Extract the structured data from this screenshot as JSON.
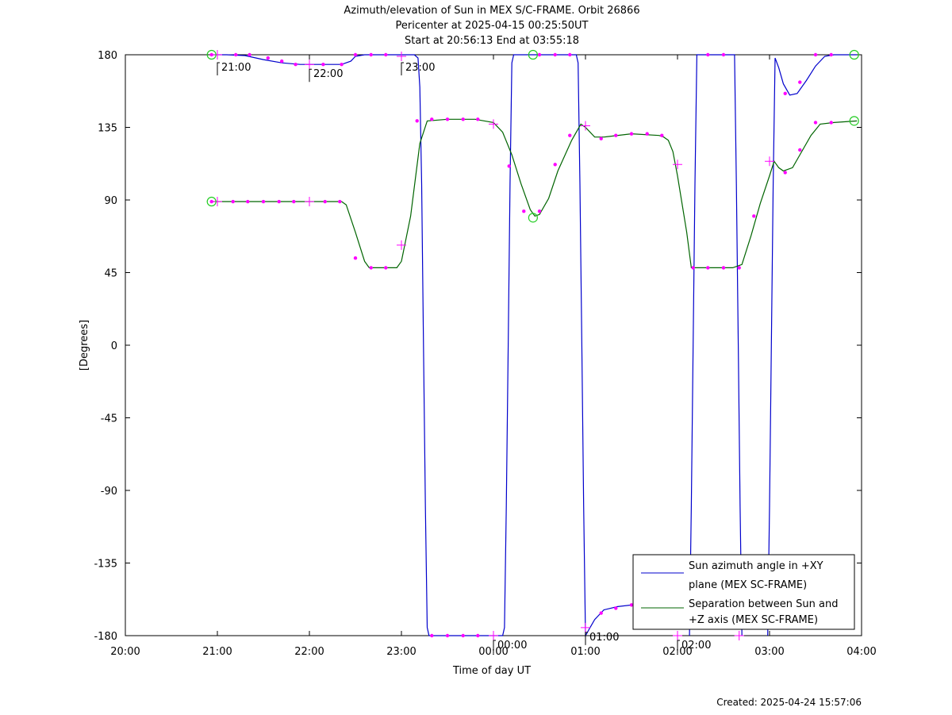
{
  "chart_data": {
    "type": "line",
    "title": "Azimuth/elevation of Sun in MEX S/C-FRAME.  Orbit 26866",
    "subtitle_1": "Pericenter at 2025-04-15 00:25:50UT",
    "subtitle_2": "Start at 20:56:13 End at 03:55:18",
    "xlabel": "Time of day UT",
    "ylabel": "[Degrees]",
    "footer": "Created: 2025-04-24 15:57:06",
    "x_unit": "hours since 20:00 UT",
    "xlim": [
      0,
      8
    ],
    "ylim": [
      -180,
      180
    ],
    "x_ticks": [
      0,
      1,
      2,
      3,
      4,
      5,
      6,
      7,
      8
    ],
    "x_tick_labels": [
      "20:00",
      "21:00",
      "22:00",
      "23:00",
      "00:00",
      "01:00",
      "02:00",
      "03:00",
      "04:00"
    ],
    "y_ticks": [
      180,
      135,
      90,
      45,
      0,
      -45,
      -90,
      -135,
      -180
    ],
    "y_tick_labels": [
      "180",
      "135",
      "90",
      "45",
      "0",
      "-45",
      "-90",
      "-135",
      "-180"
    ],
    "legend_position": "bottom-right",
    "legend": [
      {
        "line1": "Sun azimuth angle in +XY",
        "line2": "plane (MEX SC-FRAME)",
        "color": "#0000cc"
      },
      {
        "line1": "Separation between Sun and",
        "line2": "+Z axis (MEX SC-FRAME)",
        "color": "#006400"
      }
    ],
    "hour_annotations": [
      {
        "x": 1.0,
        "y": 180,
        "label": "21:00"
      },
      {
        "x": 2.0,
        "y": 174,
        "label": "22:00"
      },
      {
        "x": 3.0,
        "y": 179,
        "label": "23:00"
      },
      {
        "x": 4.0,
        "y": -180,
        "label": "00:00"
      },
      {
        "x": 5.0,
        "y": -175,
        "label": "01:00"
      },
      {
        "x": 6.0,
        "y": -180,
        "label": "02:00"
      }
    ],
    "series": [
      {
        "name": "Sun azimuth angle in +XY plane (MEX SC-FRAME)",
        "color": "#0000cc",
        "segments": [
          [
            [
              0.937,
              180
            ],
            [
              1.1,
              180
            ],
            [
              1.3,
              179.5
            ],
            [
              1.5,
              177
            ],
            [
              1.7,
              175
            ],
            [
              1.9,
              174
            ],
            [
              2.1,
              174
            ],
            [
              2.2,
              174
            ],
            [
              2.35,
              174
            ],
            [
              2.45,
              176
            ],
            [
              2.5,
              179
            ],
            [
              2.6,
              180
            ],
            [
              3.1,
              180
            ],
            [
              3.14,
              180
            ],
            [
              3.18,
              178
            ],
            [
              3.2,
              160
            ],
            [
              3.22,
              100
            ],
            [
              3.24,
              0
            ],
            [
              3.26,
              -100
            ],
            [
              3.28,
              -175
            ],
            [
              3.3,
              -180
            ],
            [
              4.1,
              -180
            ],
            [
              4.12,
              -175
            ],
            [
              4.14,
              -100
            ],
            [
              4.16,
              0
            ],
            [
              4.18,
              100
            ],
            [
              4.2,
              175
            ],
            [
              4.22,
              180
            ],
            [
              4.9,
              180
            ],
            [
              4.92,
              175
            ],
            [
              4.94,
              100
            ],
            [
              4.96,
              0
            ],
            [
              4.98,
              -100
            ],
            [
              5.0,
              -180
            ],
            [
              5.05,
              -175
            ],
            [
              5.1,
              -170
            ],
            [
              5.2,
              -164
            ],
            [
              5.35,
              -162
            ],
            [
              5.5,
              -161
            ],
            [
              5.65,
              -160.5
            ]
          ],
          [
            [
              6.13,
              -180
            ],
            [
              6.15,
              -100
            ],
            [
              6.17,
              0
            ],
            [
              6.19,
              100
            ],
            [
              6.21,
              180
            ],
            [
              6.62,
              180
            ],
            [
              6.64,
              100
            ],
            [
              6.66,
              0
            ],
            [
              6.68,
              -100
            ],
            [
              6.7,
              -180
            ]
          ],
          [
            [
              6.98,
              -180
            ],
            [
              7.0,
              -100
            ],
            [
              7.02,
              0
            ],
            [
              7.04,
              100
            ],
            [
              7.06,
              178
            ],
            [
              7.1,
              172
            ],
            [
              7.15,
              162
            ],
            [
              7.22,
              155
            ],
            [
              7.3,
              156
            ],
            [
              7.4,
              164
            ],
            [
              7.5,
              173
            ],
            [
              7.6,
              179
            ],
            [
              7.7,
              180
            ],
            [
              7.95,
              180
            ]
          ]
        ],
        "markers": [
          [
            0.937,
            180
          ],
          [
            1.2,
            180
          ],
          [
            1.35,
            180
          ],
          [
            1.55,
            178
          ],
          [
            1.7,
            176
          ],
          [
            1.85,
            174
          ],
          [
            2.15,
            174
          ],
          [
            2.35,
            174
          ],
          [
            2.5,
            180
          ],
          [
            2.67,
            180
          ],
          [
            2.83,
            180
          ],
          [
            3.33,
            -180
          ],
          [
            3.5,
            -180
          ],
          [
            3.67,
            -180
          ],
          [
            3.83,
            -180
          ],
          [
            4.5,
            180
          ],
          [
            4.67,
            180
          ],
          [
            4.83,
            180
          ],
          [
            5.17,
            -166
          ],
          [
            5.33,
            -163
          ],
          [
            5.5,
            -161
          ],
          [
            6.33,
            180
          ],
          [
            6.5,
            180
          ],
          [
            7.17,
            156
          ],
          [
            7.33,
            163
          ],
          [
            7.5,
            180
          ],
          [
            7.67,
            180
          ]
        ],
        "crosses": [
          [
            1.0,
            180
          ],
          [
            2.0,
            174
          ],
          [
            3.0,
            179
          ],
          [
            4.0,
            -180
          ],
          [
            5.0,
            -175
          ],
          [
            6.0,
            -180
          ],
          [
            6.67,
            -180
          ]
        ],
        "circles": [
          [
            0.937,
            180
          ],
          [
            4.43,
            180
          ],
          [
            7.92,
            180
          ]
        ]
      },
      {
        "name": "Separation between Sun and +Z axis (MEX SC-FRAME)",
        "color": "#006400",
        "segments": [
          [
            [
              0.937,
              89
            ],
            [
              1.5,
              89
            ],
            [
              2.0,
              89
            ],
            [
              2.35,
              89
            ],
            [
              2.4,
              87
            ],
            [
              2.5,
              70
            ],
            [
              2.6,
              52
            ],
            [
              2.65,
              48
            ],
            [
              2.8,
              48
            ],
            [
              2.95,
              48
            ],
            [
              3.0,
              52
            ],
            [
              3.1,
              80
            ],
            [
              3.2,
              125
            ],
            [
              3.28,
              139
            ],
            [
              3.5,
              140
            ],
            [
              3.8,
              140
            ],
            [
              4.0,
              138
            ],
            [
              4.1,
              132
            ],
            [
              4.2,
              118
            ],
            [
              4.3,
              100
            ],
            [
              4.4,
              84
            ],
            [
              4.45,
              80
            ],
            [
              4.5,
              81
            ],
            [
              4.6,
              91
            ],
            [
              4.7,
              108
            ],
            [
              4.85,
              127
            ],
            [
              4.95,
              137
            ],
            [
              5.0,
              135
            ],
            [
              5.1,
              129
            ],
            [
              5.2,
              129
            ],
            [
              5.5,
              131
            ],
            [
              5.8,
              130
            ],
            [
              5.85,
              129
            ],
            [
              5.9,
              127
            ],
            [
              5.95,
              120
            ],
            [
              6.0,
              105
            ],
            [
              6.1,
              70
            ],
            [
              6.15,
              48
            ],
            [
              6.3,
              48
            ],
            [
              6.6,
              48
            ],
            [
              6.7,
              50
            ],
            [
              6.8,
              68
            ],
            [
              6.9,
              88
            ],
            [
              7.0,
              105
            ],
            [
              7.05,
              114
            ],
            [
              7.1,
              110
            ],
            [
              7.15,
              108
            ],
            [
              7.25,
              110
            ],
            [
              7.35,
              120
            ],
            [
              7.45,
              130
            ],
            [
              7.55,
              137
            ],
            [
              7.7,
              138
            ],
            [
              7.95,
              139
            ]
          ]
        ],
        "markers": [
          [
            0.937,
            89
          ],
          [
            1.17,
            89
          ],
          [
            1.33,
            89
          ],
          [
            1.5,
            89
          ],
          [
            1.67,
            89
          ],
          [
            1.83,
            89
          ],
          [
            2.17,
            89
          ],
          [
            2.33,
            89
          ],
          [
            2.5,
            54
          ],
          [
            2.67,
            48
          ],
          [
            2.83,
            48
          ],
          [
            3.17,
            139
          ],
          [
            3.33,
            140
          ],
          [
            3.5,
            140
          ],
          [
            3.67,
            140
          ],
          [
            3.83,
            140
          ],
          [
            4.17,
            111
          ],
          [
            4.33,
            83
          ],
          [
            4.5,
            83
          ],
          [
            4.67,
            112
          ],
          [
            4.83,
            130
          ],
          [
            5.17,
            128
          ],
          [
            5.33,
            130
          ],
          [
            5.5,
            131
          ],
          [
            5.67,
            131
          ],
          [
            5.83,
            130
          ],
          [
            6.17,
            48
          ],
          [
            6.33,
            48
          ],
          [
            6.5,
            48
          ],
          [
            6.67,
            48
          ],
          [
            6.83,
            80
          ],
          [
            7.17,
            107
          ],
          [
            7.33,
            121
          ],
          [
            7.5,
            138
          ],
          [
            7.67,
            138
          ]
        ],
        "crosses": [
          [
            1.0,
            89
          ],
          [
            2.0,
            89
          ],
          [
            3.0,
            62
          ],
          [
            4.0,
            137
          ],
          [
            5.0,
            136
          ],
          [
            6.0,
            112
          ],
          [
            7.0,
            114
          ]
        ],
        "circles": [
          [
            0.937,
            89
          ],
          [
            4.43,
            79
          ],
          [
            7.92,
            139
          ]
        ]
      }
    ]
  }
}
